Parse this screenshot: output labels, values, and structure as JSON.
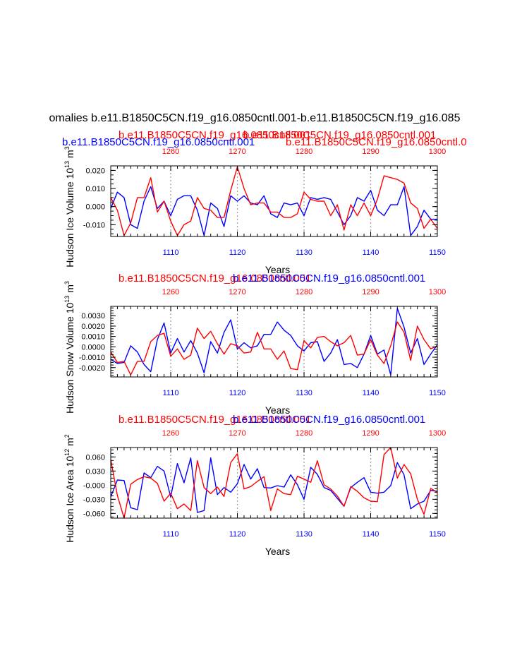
{
  "figure_title": "omalies b.e11.B1850C5CN.f19_g16.0850cntl.001-b.e11.B1850C5CN.f19_g16.085",
  "colors": {
    "red": "#ff0000",
    "blue": "#0000ff",
    "black": "#000000",
    "grid": "#a0a0a0"
  },
  "chart_data": [
    {
      "type": "line",
      "panel": "ice-volume",
      "ylabel_main": "Hudson Ice Volume 10",
      "ylabel_exp": "13",
      "ylabel_unit": " m",
      "ylabel_unit_exp": "3",
      "xlabel": "Years",
      "top_title_red": "b.e11.B1850C5CN.f19_g16.0850cntl.001",
      "top_title_blue": "b.e11.B1850C5CN.f19_g16.0850cntl.001",
      "top_title_red_extra": "b.e11.B1850C5CN.f19_g16.0850cntl.0",
      "ylim": [
        -0.0165,
        0.0225
      ],
      "yticks": [
        0.02,
        0.01,
        0.0,
        -0.01
      ],
      "ytick_labels": [
        "0.020",
        "0.010",
        "0.000",
        "-0.010"
      ],
      "xlim_bottom": [
        1101,
        1150
      ],
      "xticks_bottom": [
        "1110",
        "1120",
        "1130",
        "1140",
        "1150"
      ],
      "xlim_top": [
        1251,
        1300
      ],
      "xticks_top": [
        "1260",
        "1270",
        "1280",
        "1290",
        "1300"
      ],
      "series": [
        {
          "name": "blue",
          "color": "#0000ff",
          "x_start": 1101,
          "values": [
            -0.001,
            0.008,
            0.005,
            -0.01,
            -0.012,
            0.003,
            0.011,
            -0.001,
            0.003,
            -0.005,
            0.004,
            0.006,
            0.006,
            -0.002,
            -0.016,
            0.002,
            -0.001,
            -0.011,
            0.006,
            0.003,
            0.006,
            0.002,
            0.001,
            0.006,
            -0.004,
            -0.006,
            0.002,
            0.001,
            0.002,
            -0.005,
            0.005,
            0.004,
            0.005,
            0.004,
            -0.003,
            -0.01,
            -0.005,
            0.005,
            0.003,
            0.009,
            -0.002,
            -0.005,
            0.001,
            0.001,
            0.011,
            -0.016,
            -0.011,
            -0.002,
            -0.007,
            -0.007
          ]
        },
        {
          "name": "red",
          "color": "#ff0000",
          "x_start": 1101,
          "values": [
            0.005,
            -0.002,
            -0.016,
            -0.009,
            0.005,
            0.005,
            0.016,
            -0.003,
            0.003,
            -0.008,
            -0.016,
            -0.01,
            -0.008,
            0.005,
            -0.001,
            -0.002,
            -0.006,
            -0.006,
            0.009,
            0.022,
            0.01,
            0.001,
            0.002,
            0.002,
            -0.003,
            -0.003,
            -0.006,
            -0.006,
            -0.004,
            0.008,
            0.004,
            0.003,
            0.003,
            -0.005,
            0.001,
            -0.013,
            0.001,
            -0.005,
            0.002,
            -0.005,
            0.004,
            0.017,
            0.016,
            0.015,
            0.013,
            0.002,
            -0.001,
            -0.012,
            -0.007,
            -0.012
          ]
        }
      ]
    },
    {
      "type": "line",
      "panel": "snow-volume",
      "ylabel_main": "Hudson Snow Volume 10",
      "ylabel_exp": "13",
      "ylabel_unit": " m",
      "ylabel_unit_exp": "3",
      "xlabel": "Years",
      "top_title_red": "b.e11.B1850C5CN.f19_g16.0850cntl.001",
      "top_title_blue": "b.e11.B1850C5CN.f19_g16.0850cntl.001",
      "ylim": [
        -0.0029,
        0.0039
      ],
      "yticks": [
        0.003,
        0.002,
        0.001,
        0.0,
        -0.001,
        -0.002
      ],
      "ytick_labels": [
        "0.0030",
        "0.0020",
        "0.0010",
        "0.0000",
        "-0.0010",
        "-0.0020"
      ],
      "xlim_bottom": [
        1101,
        1150
      ],
      "xticks_bottom": [
        "1110",
        "1120",
        "1130",
        "1140",
        "1150"
      ],
      "xlim_top": [
        1251,
        1300
      ],
      "xticks_top": [
        "1260",
        "1270",
        "1280",
        "1290",
        "1300"
      ],
      "series": [
        {
          "name": "blue",
          "color": "#0000ff",
          "x_start": 1101,
          "values": [
            -0.0012,
            -0.0016,
            -0.0015,
            0.0001,
            -0.0005,
            -0.0017,
            -0.0024,
            0.0007,
            0.0023,
            -0.0006,
            0.0008,
            -0.0005,
            0.0006,
            -0.0006,
            -0.0025,
            0.0005,
            -0.0006,
            0.0014,
            0.0026,
            -0.0002,
            0.0004,
            -0.0001,
            0.0001,
            0.0012,
            0.0012,
            0.0024,
            0.0016,
            0.0011,
            0.0001,
            -0.0004,
            0.0004,
            0.0005,
            -0.0014,
            -0.0006,
            0.0007,
            -0.0017,
            -0.0016,
            -0.002,
            -0.0007,
            0.0011,
            -0.0007,
            -0.0003,
            -0.0027,
            0.0037,
            0.0019,
            -0.0006,
            0.0008,
            -0.0017,
            -0.0007,
            0.0002
          ]
        },
        {
          "name": "red",
          "color": "#ff0000",
          "x_start": 1101,
          "values": [
            -0.0005,
            -0.0015,
            -0.0014,
            -0.0027,
            -0.0014,
            -0.0014,
            0.0005,
            0.0011,
            0.0013,
            -0.0009,
            -0.0002,
            -0.0012,
            -0.0008,
            0.0018,
            0.0008,
            0.0015,
            0.0003,
            -0.0007,
            0.0003,
            0.0001,
            -0.0006,
            -0.0005,
            0.0014,
            -0.0002,
            -0.0002,
            -0.0012,
            -0.0004,
            -0.0021,
            -0.0022,
            0.0006,
            -0.0001,
            0.0009,
            0.001,
            0.0005,
            0.0001,
            0.0004,
            0.0011,
            -0.0008,
            -0.0007,
            0.0007,
            -0.0008,
            -0.0016,
            0.0001,
            0.0024,
            0.0014,
            -0.0013,
            0.002,
            0.0007,
            -0.0002,
            0.0001
          ]
        }
      ]
    },
    {
      "type": "line",
      "panel": "ice-area",
      "ylabel_main": "Hudson Ice Area 10",
      "ylabel_exp": "12",
      "ylabel_unit": " m",
      "ylabel_unit_exp": "2",
      "xlabel": "Years",
      "top_title_red": "b.e11.B1850C5CN.f19_g16.0850cntl.001",
      "top_title_blue": "b.e11.B1850C5CN.f19_g16.0850cntl.001",
      "ylim": [
        -0.07,
        0.08
      ],
      "yticks": [
        0.06,
        0.03,
        0.0,
        -0.03,
        -0.06
      ],
      "ytick_labels": [
        "0.060",
        "0.030",
        "-0.000",
        "-0.030",
        "-0.060"
      ],
      "xlim_bottom": [
        1101,
        1150
      ],
      "xticks_bottom": [
        "1110",
        "1120",
        "1130",
        "1140",
        "1150"
      ],
      "xlim_top": [
        1251,
        1300
      ],
      "xticks_top": [
        "1260",
        "1270",
        "1280",
        "1290",
        "1300"
      ],
      "series": [
        {
          "name": "blue",
          "color": "#0000ff",
          "x_start": 1101,
          "values": [
            -0.025,
            0.011,
            0.01,
            -0.048,
            -0.052,
            0.026,
            0.016,
            0.04,
            0.03,
            -0.025,
            0.046,
            0.005,
            0.058,
            -0.058,
            -0.054,
            0.058,
            -0.02,
            -0.005,
            -0.015,
            0.003,
            0.044,
            0.013,
            0.035,
            -0.005,
            -0.006,
            -0.001,
            -0.004,
            0.022,
            0.001,
            -0.03,
            0.038,
            0.023,
            -0.005,
            -0.011,
            -0.028,
            -0.045,
            -0.005,
            0.006,
            0.016,
            -0.015,
            -0.017,
            -0.015,
            -0.001,
            0.048,
            0.022,
            -0.05,
            -0.04,
            -0.034,
            -0.011,
            -0.013
          ]
        },
        {
          "name": "red",
          "color": "#ff0000",
          "x_start": 1101,
          "values": [
            0.055,
            -0.022,
            -0.07,
            0.002,
            0.012,
            0.018,
            0.015,
            0.004,
            -0.034,
            -0.017,
            -0.05,
            -0.04,
            -0.054,
            0.052,
            -0.005,
            -0.018,
            -0.004,
            -0.024,
            0.048,
            0.067,
            -0.008,
            -0.003,
            0.008,
            0.018,
            -0.054,
            -0.008,
            -0.018,
            -0.02,
            0.019,
            0.013,
            0.006,
            0.052,
            0.001,
            -0.008,
            -0.023,
            -0.045,
            -0.003,
            -0.013,
            -0.027,
            -0.034,
            -0.035,
            0.065,
            0.08,
            0.015,
            0.044,
            0.024,
            -0.03,
            -0.062,
            -0.007,
            -0.015
          ]
        }
      ]
    }
  ]
}
